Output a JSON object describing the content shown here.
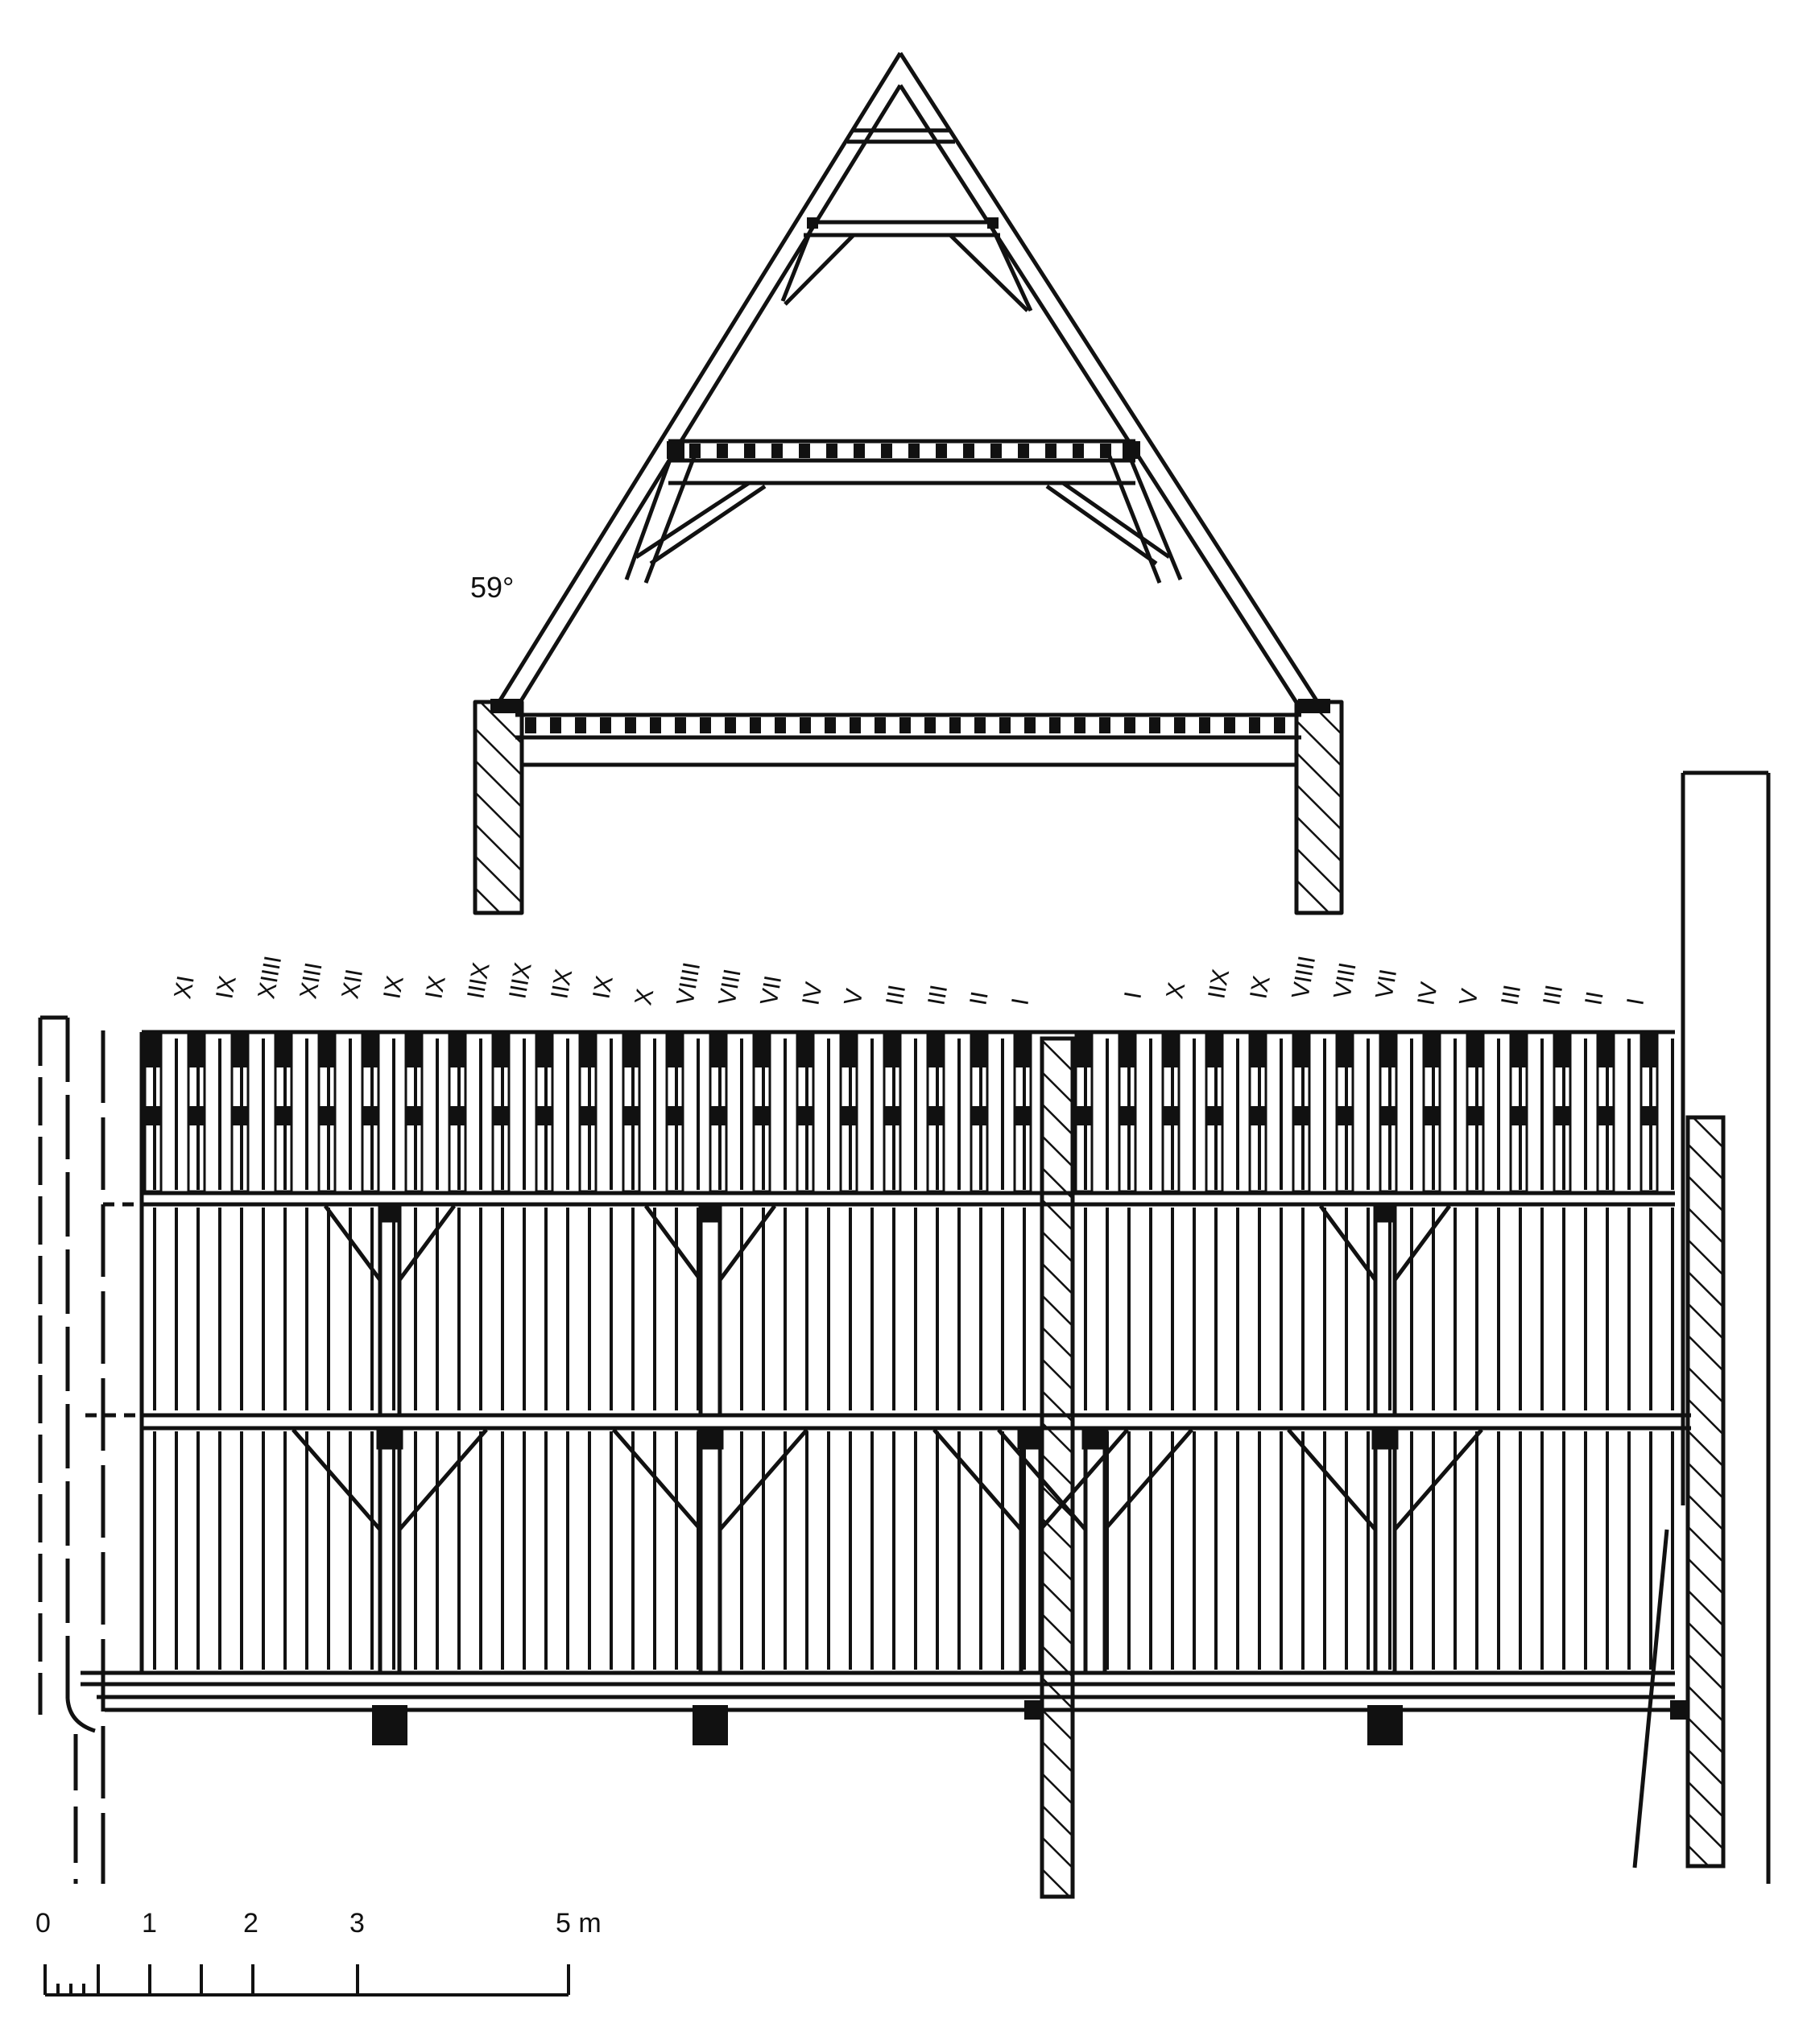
{
  "angle_label": "59°",
  "scale_bar": {
    "tick_labels": [
      "0",
      "1",
      "2",
      "3",
      "5 m"
    ]
  },
  "carpenter_marks": {
    "left_half": [
      "XI",
      "IX",
      "XIIII",
      "XIII",
      "XII",
      "IX",
      "IX",
      "IIIX",
      "IIIX",
      "IIX",
      "IX",
      "X",
      "VIIII",
      "VIII",
      "VII",
      "IV",
      "V",
      "III",
      "III",
      "II",
      "I"
    ],
    "right_half": [
      "I",
      "X",
      "IIX",
      "IX",
      "VIIII",
      "VIII",
      "VII",
      "IV",
      "V",
      "III",
      "III",
      "II",
      "I"
    ]
  },
  "colors": {
    "ink": "#111111",
    "paper": "#ffffff"
  }
}
